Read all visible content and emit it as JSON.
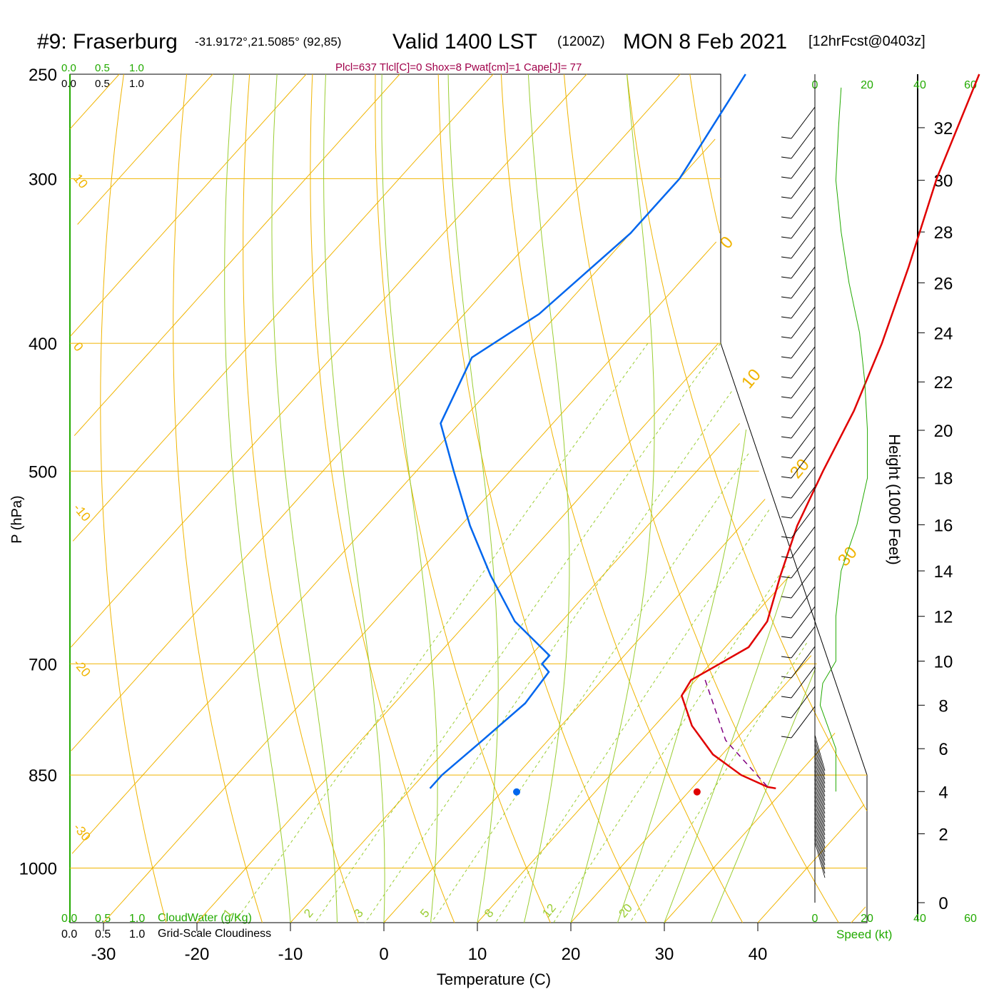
{
  "header": {
    "station": "#9: Fraserburg",
    "coords": "-31.9172°,21.5085° (92,85)",
    "valid": "Valid 1400 LST",
    "zulu": "(1200Z)",
    "date": "MON 8 Feb 2021",
    "forecast": "[12hrFcst@0403z]"
  },
  "indices": "Plcl=637 Tlcl[C]=0 Shox=8 Pwat[cm]=1 Cape[J]= 77",
  "legend": {
    "cloudwater_ticks": [
      "0.0",
      "0.5",
      "1.0"
    ],
    "cloudiness_ticks": [
      "0.0",
      "0.5",
      "1.0"
    ],
    "cloudwater_label": "CloudWater (g/Kg)",
    "cloudiness_label": "Grid-Scale Cloudiness"
  },
  "colors": {
    "isotherm": "#f0b400",
    "dry_adiabat": "#8dc63f",
    "moist_adiabat": "#9acd32",
    "mixing_ratio": "#9acd32",
    "temperature": "#e00000",
    "dewpoint": "#0066ee",
    "parcel": "#800080",
    "axis_label_green": "#22aa00",
    "indices": "#a0004a",
    "height": "#000000"
  },
  "chart_data": {
    "type": "skew-t",
    "xlabel": "Temperature (C)",
    "ylabel": "P (hPa)",
    "right_label": "Height (1000 Feet)",
    "x_ticks": [
      "-30",
      "-20",
      "-10",
      "0",
      "10",
      "20",
      "30",
      "40"
    ],
    "y_ticks": [
      "250",
      "300",
      "400",
      "500",
      "700",
      "850",
      "1000"
    ],
    "height_ticks": [
      "0",
      "2",
      "4",
      "6",
      "8",
      "10",
      "12",
      "14",
      "16",
      "18",
      "20",
      "22",
      "24",
      "26",
      "28",
      "30",
      "32"
    ],
    "speed_ticks": [
      "0",
      "20",
      "40",
      "60"
    ],
    "speed_label": "Speed (kt)",
    "isotherm_labels": [
      "-30",
      "-20",
      "-10",
      "0",
      "10",
      "20",
      "30"
    ],
    "mixing_ratio_labels": [
      "1",
      "2",
      "3",
      "5",
      "8",
      "12",
      "20"
    ],
    "temperature": [
      {
        "p": 250,
        "t": -18
      },
      {
        "p": 300,
        "t": -12.5
      },
      {
        "p": 350,
        "t": -7
      },
      {
        "p": 400,
        "t": -2.5
      },
      {
        "p": 450,
        "t": 1
      },
      {
        "p": 500,
        "t": 3.5
      },
      {
        "p": 550,
        "t": 6
      },
      {
        "p": 600,
        "t": 9
      },
      {
        "p": 650,
        "t": 12
      },
      {
        "p": 680,
        "t": 12.5
      },
      {
        "p": 700,
        "t": 11
      },
      {
        "p": 720,
        "t": 9.5
      },
      {
        "p": 740,
        "t": 10
      },
      {
        "p": 780,
        "t": 14
      },
      {
        "p": 820,
        "t": 19
      },
      {
        "p": 850,
        "t": 24
      },
      {
        "p": 868,
        "t": 28
      },
      {
        "p": 870,
        "t": 29
      }
    ],
    "dewpoint": [
      {
        "p": 250,
        "t": -43
      },
      {
        "p": 300,
        "t": -40
      },
      {
        "p": 330,
        "t": -40
      },
      {
        "p": 380,
        "t": -42
      },
      {
        "p": 410,
        "t": -45
      },
      {
        "p": 460,
        "t": -42
      },
      {
        "p": 500,
        "t": -36
      },
      {
        "p": 550,
        "t": -29
      },
      {
        "p": 600,
        "t": -22
      },
      {
        "p": 650,
        "t": -15
      },
      {
        "p": 690,
        "t": -8
      },
      {
        "p": 700,
        "t": -8
      },
      {
        "p": 710,
        "t": -6.5
      },
      {
        "p": 750,
        "t": -6
      },
      {
        "p": 800,
        "t": -7
      },
      {
        "p": 850,
        "t": -8
      },
      {
        "p": 870,
        "t": -8
      }
    ],
    "parcel": [
      {
        "p": 720,
        "t": 11
      },
      {
        "p": 800,
        "t": 19
      },
      {
        "p": 868,
        "t": 28
      }
    ],
    "surface_temperature": {
      "p": 870,
      "t": 33.5
    },
    "surface_dewpoint": {
      "p": 870,
      "t": 14.2
    },
    "wind_speed_profile": [
      {
        "h": 4,
        "spd": 8
      },
      {
        "h": 6,
        "spd": 8
      },
      {
        "h": 8,
        "spd": 2
      },
      {
        "h": 9,
        "spd": 3
      },
      {
        "h": 10,
        "spd": 8
      },
      {
        "h": 12,
        "spd": 8
      },
      {
        "h": 14,
        "spd": 10
      },
      {
        "h": 16,
        "spd": 16
      },
      {
        "h": 18,
        "spd": 20
      },
      {
        "h": 20,
        "spd": 20
      },
      {
        "h": 22,
        "spd": 19
      },
      {
        "h": 24,
        "spd": 17
      },
      {
        "h": 26,
        "spd": 13
      },
      {
        "h": 28,
        "spd": 10
      },
      {
        "h": 30,
        "spd": 8
      },
      {
        "h": 32,
        "spd": 9
      },
      {
        "h": 33.5,
        "spd": 10
      }
    ]
  }
}
